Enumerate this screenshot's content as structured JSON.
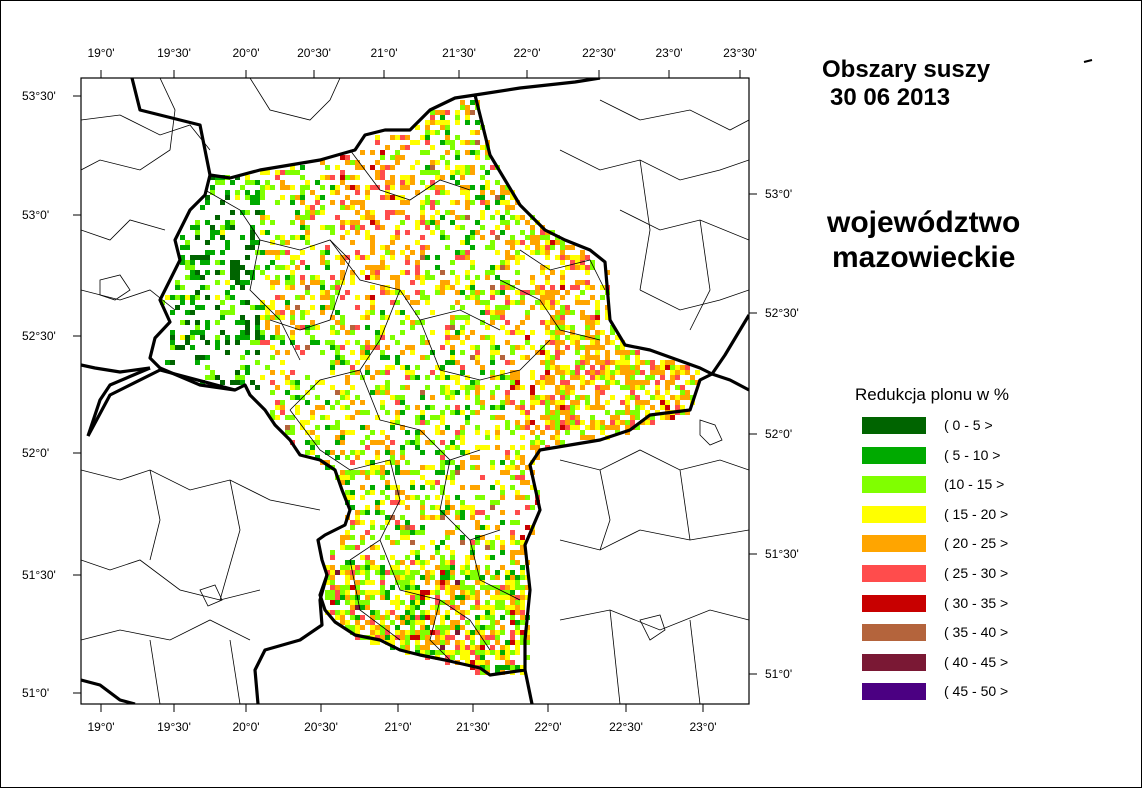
{
  "title": {
    "line1": "Obszary suszy",
    "line2": "30 06 2013"
  },
  "region": {
    "line1": "województwo",
    "line2": "mazowieckie"
  },
  "legend": {
    "title": "Redukcja plonu w %",
    "items": [
      {
        "label": "( 0 - 5 >",
        "color": "#006400"
      },
      {
        "label": "( 5 - 10 >",
        "color": "#00aa00"
      },
      {
        "label": "(10 - 15 >",
        "color": "#80ff00"
      },
      {
        "label": "( 15 - 20 >",
        "color": "#ffff00"
      },
      {
        "label": "( 20 - 25 >",
        "color": "#ffa500"
      },
      {
        "label": "( 25 - 30 >",
        "color": "#ff4c4c"
      },
      {
        "label": "( 30 - 35 >",
        "color": "#c80000"
      },
      {
        "label": "( 35 - 40 >",
        "color": "#b4643c"
      },
      {
        "label": "( 40 - 45 >",
        "color": "#7a1834"
      },
      {
        "label": "( 45 - 50 >",
        "color": "#4b0082"
      }
    ]
  },
  "axes": {
    "top": [
      "19°0'",
      "19°30'",
      "20°0'",
      "20°30'",
      "21°0'",
      "21°30'",
      "22°0'",
      "22°30'",
      "23°0'",
      "23°30'"
    ],
    "bottom": [
      "19°0'",
      "19°30'",
      "20°0'",
      "20°30'",
      "21°0'",
      "21°30'",
      "22°0'",
      "22°30'",
      "23°0'"
    ],
    "left": [
      "53°30'",
      "53°0'",
      "52°30'",
      "52°0'",
      "51°30'",
      "51°0'"
    ],
    "right": [
      "53°0'",
      "52°30'",
      "52°0'",
      "51°30'",
      "51°0'"
    ]
  }
}
